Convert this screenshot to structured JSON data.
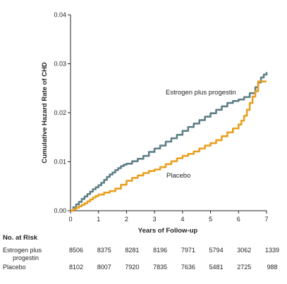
{
  "chart_data": {
    "type": "line",
    "title": "",
    "xlabel": "Years of Follow-up",
    "ylabel": "Cumulative Hazard Rate of CHD",
    "xlim": [
      0,
      7
    ],
    "ylim": [
      0,
      0.04
    ],
    "x_ticks": [
      "0",
      "1",
      "2",
      "3",
      "4",
      "5",
      "6",
      "7"
    ],
    "y_ticks": [
      "0.00",
      "0.01",
      "0.02",
      "0.03",
      "0.04"
    ],
    "grid": false,
    "series": [
      {
        "name": "Estrogen plus progestin",
        "color": "#5f7f86",
        "x": [
          0,
          0.1,
          0.2,
          0.3,
          0.4,
          0.5,
          0.6,
          0.7,
          0.8,
          0.9,
          1.0,
          1.1,
          1.2,
          1.3,
          1.4,
          1.5,
          1.6,
          1.7,
          1.8,
          1.9,
          2.0,
          2.2,
          2.4,
          2.6,
          2.8,
          3.0,
          3.2,
          3.4,
          3.6,
          3.8,
          4.0,
          4.2,
          4.4,
          4.6,
          4.8,
          5.0,
          5.2,
          5.4,
          5.6,
          5.8,
          6.0,
          6.2,
          6.4,
          6.6,
          6.7,
          6.8,
          6.9,
          7.0
        ],
        "y": [
          0,
          0.0007,
          0.0013,
          0.0018,
          0.0024,
          0.0029,
          0.0034,
          0.0039,
          0.0044,
          0.0048,
          0.0052,
          0.0057,
          0.0063,
          0.0069,
          0.0074,
          0.0078,
          0.0083,
          0.0087,
          0.0091,
          0.0094,
          0.0096,
          0.0101,
          0.0106,
          0.0112,
          0.012,
          0.0127,
          0.0133,
          0.0141,
          0.0148,
          0.0155,
          0.0163,
          0.0171,
          0.0178,
          0.0185,
          0.0192,
          0.0199,
          0.0206,
          0.0213,
          0.022,
          0.0224,
          0.0227,
          0.0232,
          0.024,
          0.0252,
          0.0262,
          0.0272,
          0.0278,
          0.0283
        ]
      },
      {
        "name": "Placebo",
        "color": "#e8a020",
        "x": [
          0,
          0.1,
          0.2,
          0.3,
          0.4,
          0.5,
          0.6,
          0.7,
          0.8,
          0.9,
          1.0,
          1.2,
          1.4,
          1.6,
          1.8,
          2.0,
          2.2,
          2.4,
          2.6,
          2.8,
          3.0,
          3.2,
          3.4,
          3.6,
          3.8,
          4.0,
          4.2,
          4.4,
          4.6,
          4.8,
          5.0,
          5.2,
          5.4,
          5.6,
          5.8,
          6.0,
          6.1,
          6.2,
          6.3,
          6.4,
          6.5,
          6.6,
          6.7,
          7.0
        ],
        "y": [
          0,
          0.0003,
          0.0006,
          0.0009,
          0.0012,
          0.0015,
          0.0019,
          0.0023,
          0.0027,
          0.003,
          0.0033,
          0.0037,
          0.004,
          0.0045,
          0.0053,
          0.0061,
          0.0067,
          0.0072,
          0.0077,
          0.0081,
          0.0084,
          0.0089,
          0.0095,
          0.0101,
          0.0107,
          0.0112,
          0.0116,
          0.0121,
          0.0127,
          0.0133,
          0.0138,
          0.0144,
          0.0152,
          0.016,
          0.0168,
          0.0176,
          0.0184,
          0.0194,
          0.0206,
          0.022,
          0.0233,
          0.0244,
          0.0264,
          0.0264
        ]
      }
    ]
  },
  "risk_table": {
    "title": "No. at Risk",
    "rows": [
      {
        "label": "Estrogen plus\nprogestin",
        "values": [
          "8506",
          "8375",
          "8281",
          "8196",
          "7971",
          "5794",
          "3062",
          "1339"
        ]
      },
      {
        "label": "Placebo",
        "values": [
          "8102",
          "8007",
          "7920",
          "7835",
          "7636",
          "5481",
          "2725",
          "988"
        ]
      }
    ]
  },
  "colors": {
    "estrogen": "#5f7f86",
    "placebo": "#e8a020",
    "axis": "#231f20"
  }
}
